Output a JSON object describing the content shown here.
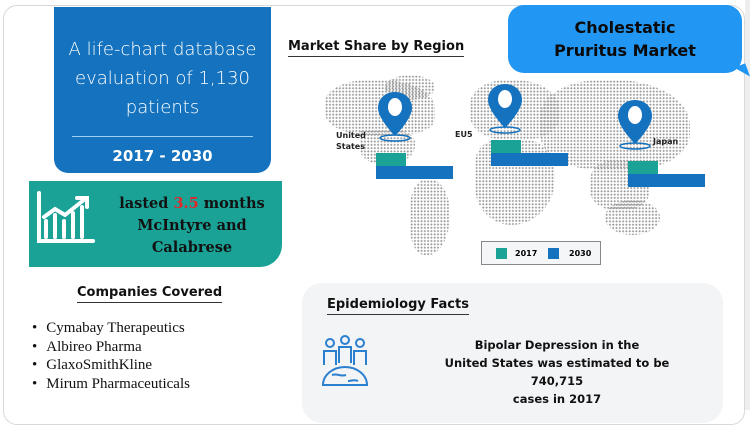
{
  "summary_box": {
    "text": "A life-chart database evaluation of 1,130 patients",
    "period": "2017 - 2030"
  },
  "stat_box": {
    "prefix": "lasted ",
    "value": "3.5",
    "suffix": " months",
    "source": "McIntyre and Calabrese",
    "icon": "growth-chart-icon"
  },
  "companies": {
    "heading": "Companies Covered",
    "items": [
      "Cymabay Therapeutics",
      "Albireo Pharma",
      "GlaxoSmithKline",
      "Mirum Pharmaceuticals"
    ]
  },
  "market_title": "Cholestatic Pruritus Market",
  "region_map": {
    "heading": "Market Share by Region",
    "regions": [
      {
        "label_lines": [
          "United",
          "States"
        ],
        "share_2017": 0.39,
        "share_2030": 1.0
      },
      {
        "label_lines": [
          "EU5"
        ],
        "share_2017": 0.39,
        "share_2030": 1.0
      },
      {
        "label_lines": [
          "Japan"
        ],
        "share_2017": 0.39,
        "share_2030": 1.0
      }
    ],
    "legend": [
      {
        "label": "2017",
        "color": "#1ba296"
      },
      {
        "label": "2030",
        "color": "#1472be"
      }
    ]
  },
  "epidemiology": {
    "heading": "Epidemiology Facts",
    "icon": "population-globe-icon",
    "lines": [
      "Bipolar Depression in the",
      "United States was estimated to be 740,715",
      "cases in 2017"
    ]
  },
  "colors": {
    "blue": "#1472be",
    "teal": "#1ba296",
    "bubble": "#2196f3",
    "highlight": "#e3262b"
  }
}
